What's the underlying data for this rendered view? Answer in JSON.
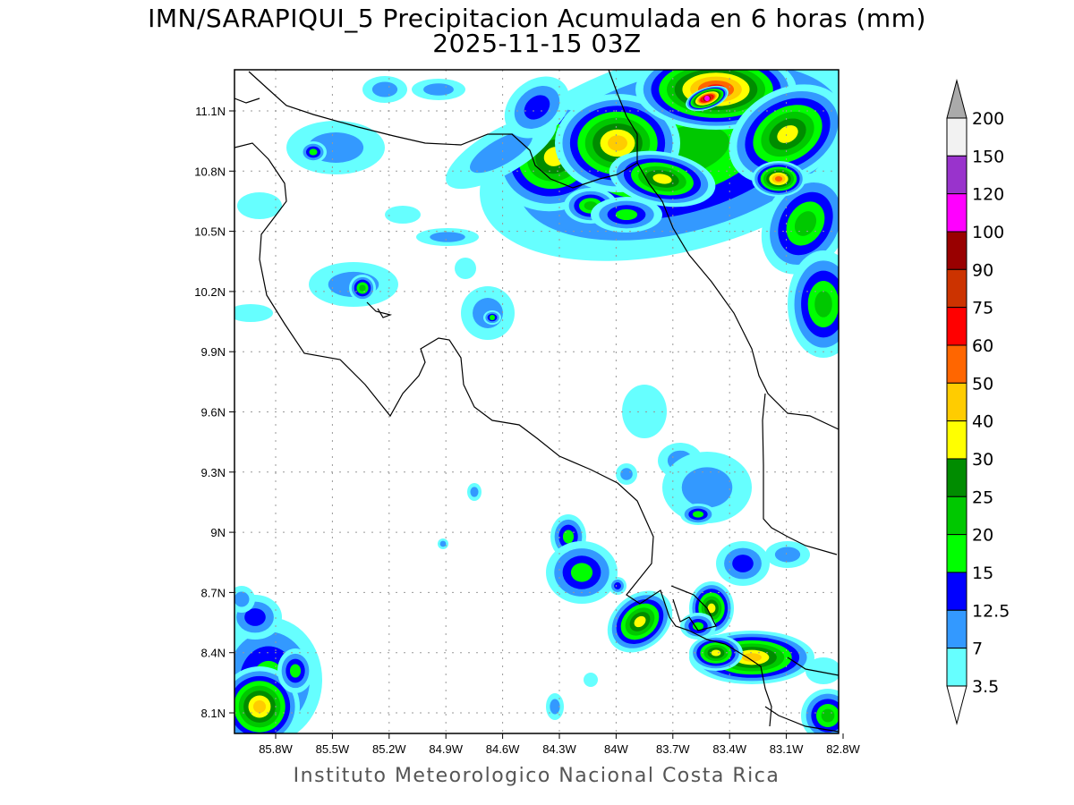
{
  "title": {
    "line1": "IMN/SARAPIQUI_5 Precipitacion Acumulada en 6 horas (mm)",
    "line2": "2025-11-15 03Z"
  },
  "footer": "Instituto Meteorologico Nacional Costa Rica",
  "map": {
    "lon_ticks": [
      "85.8W",
      "85.5W",
      "85.2W",
      "84.9W",
      "84.6W",
      "84.3W",
      "84W",
      "83.7W",
      "83.4W",
      "83.1W",
      "82.8W"
    ],
    "lat_ticks": [
      "11.1N",
      "10.8N",
      "10.5N",
      "10.2N",
      "9.9N",
      "9.6N",
      "9.3N",
      "9N",
      "8.7N",
      "8.4N",
      "8.1N"
    ],
    "grid": "dotted"
  },
  "colorbar": {
    "unit": "mm",
    "labels": [
      "200",
      "150",
      "120",
      "100",
      "90",
      "75",
      "60",
      "50",
      "40",
      "30",
      "25",
      "20",
      "15",
      "12.5",
      "7",
      "3.5"
    ],
    "colors": [
      "#f2f2f2",
      "#9933cc",
      "#ff00ff",
      "#990000",
      "#cc3300",
      "#ff0000",
      "#ff6600",
      "#ffcc00",
      "#ffff00",
      "#008c00",
      "#00c800",
      "#00ff00",
      "#0000ff",
      "#3399ff",
      "#66ffff"
    ],
    "over_color": "#aaaaaa",
    "under_color": "#ffffff"
  }
}
